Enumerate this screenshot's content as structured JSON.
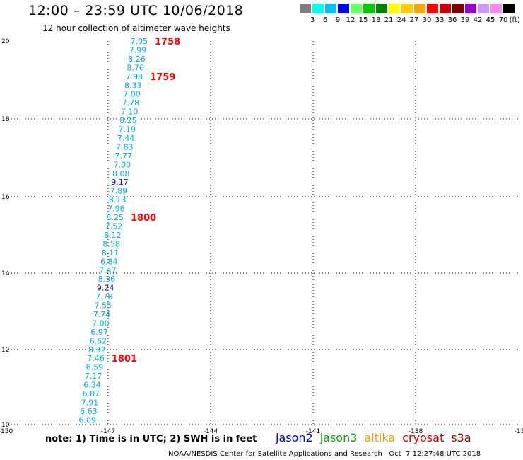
{
  "title": "12:00 – 23:59 UTC 10/06/2018",
  "subtitle": "12 hour collection of altimeter wave heights",
  "legend": {
    "labels": [
      "3",
      "6",
      "9",
      "12",
      "15",
      "18",
      "21",
      "24",
      "27",
      "30",
      "33",
      "36",
      "39",
      "42",
      "45",
      "70"
    ],
    "unit": "(ft)",
    "colors": [
      "#7f7f7f",
      "#00ffff",
      "#00c0ff",
      "#0000ff",
      "#66ff66",
      "#00cc00",
      "#008000",
      "#ffff00",
      "#ffcc00",
      "#ffa500",
      "#ff0000",
      "#cc0000",
      "#800000",
      "#9900cc",
      "#cc99ff",
      "#ff88ee",
      "#000000"
    ]
  },
  "axes": {
    "lon_ticks": [
      "-150",
      "-147",
      "-144",
      "-141",
      "-138",
      "-13"
    ],
    "lat_ticks": [
      "20",
      "18",
      "16",
      "14",
      "12",
      "10"
    ]
  },
  "observations": [
    {
      "v": "7.05",
      "c": "#00aadd"
    },
    {
      "v": "7.99",
      "c": "#00aadd"
    },
    {
      "v": "8.26",
      "c": "#00aadd"
    },
    {
      "v": "8.76",
      "c": "#00aadd"
    },
    {
      "v": "7.98",
      "c": "#00aadd"
    },
    {
      "v": "8.33",
      "c": "#00aadd"
    },
    {
      "v": "7.00",
      "c": "#00aadd"
    },
    {
      "v": "7.78",
      "c": "#00aadd"
    },
    {
      "v": "7.10",
      "c": "#00aadd"
    },
    {
      "v": "8.25",
      "c": "#00aadd"
    },
    {
      "v": "7.19",
      "c": "#00aadd"
    },
    {
      "v": "7.44",
      "c": "#00aadd"
    },
    {
      "v": "7.83",
      "c": "#00aadd"
    },
    {
      "v": "7.77",
      "c": "#00aadd"
    },
    {
      "v": "7.00",
      "c": "#00aadd"
    },
    {
      "v": "8.08",
      "c": "#00aadd"
    },
    {
      "v": "9.17",
      "c": "#0000ff"
    },
    {
      "v": "7.89",
      "c": "#00aadd"
    },
    {
      "v": "8.13",
      "c": "#00aadd"
    },
    {
      "v": "7.96",
      "c": "#00aadd"
    },
    {
      "v": "8.25",
      "c": "#00aadd"
    },
    {
      "v": "7.52",
      "c": "#00aadd"
    },
    {
      "v": "8.12",
      "c": "#00aadd"
    },
    {
      "v": "8.58",
      "c": "#00aadd"
    },
    {
      "v": "8.11",
      "c": "#00aadd"
    },
    {
      "v": "6.84",
      "c": "#00aadd"
    },
    {
      "v": "7.47",
      "c": "#00aadd"
    },
    {
      "v": "8.36",
      "c": "#00aadd"
    },
    {
      "v": "9.24",
      "c": "#000088"
    },
    {
      "v": "7.78",
      "c": "#00aadd"
    },
    {
      "v": "7.55",
      "c": "#00aadd"
    },
    {
      "v": "7.74",
      "c": "#00aadd"
    },
    {
      "v": "7.00",
      "c": "#00aadd"
    },
    {
      "v": "6.97",
      "c": "#00aadd"
    },
    {
      "v": "6.62",
      "c": "#00aadd"
    },
    {
      "v": "8.32",
      "c": "#00aadd"
    },
    {
      "v": "7.46",
      "c": "#00aadd"
    },
    {
      "v": "6.59",
      "c": "#00aadd"
    },
    {
      "v": "7.17",
      "c": "#00aadd"
    },
    {
      "v": "6.34",
      "c": "#00aadd"
    },
    {
      "v": "6.87",
      "c": "#00aadd"
    },
    {
      "v": "7.91",
      "c": "#00aadd"
    },
    {
      "v": "6.63",
      "c": "#00aadd"
    },
    {
      "v": "6.09",
      "c": "#00aadd"
    }
  ],
  "time_labels": [
    {
      "text": "1758",
      "row": 0
    },
    {
      "text": "1759",
      "row": 4
    },
    {
      "text": "1800",
      "row": 20
    },
    {
      "text": "1801",
      "row": 36
    }
  ],
  "note": "note: 1) Time is in UTC; 2) SWH is in feet",
  "satellites": [
    {
      "name": "jason2",
      "color": "#0000cc"
    },
    {
      "name": "jason3",
      "color": "#00aa00"
    },
    {
      "name": "altika",
      "color": "#ff9900"
    },
    {
      "name": "cryosat",
      "color": "#cc0000"
    },
    {
      "name": "s3a",
      "color": "#880000"
    }
  ],
  "credit": "NOAA/NESDIS Center for Satellite Applications and Research   Oct  7 12:27:48 UTC 2018"
}
